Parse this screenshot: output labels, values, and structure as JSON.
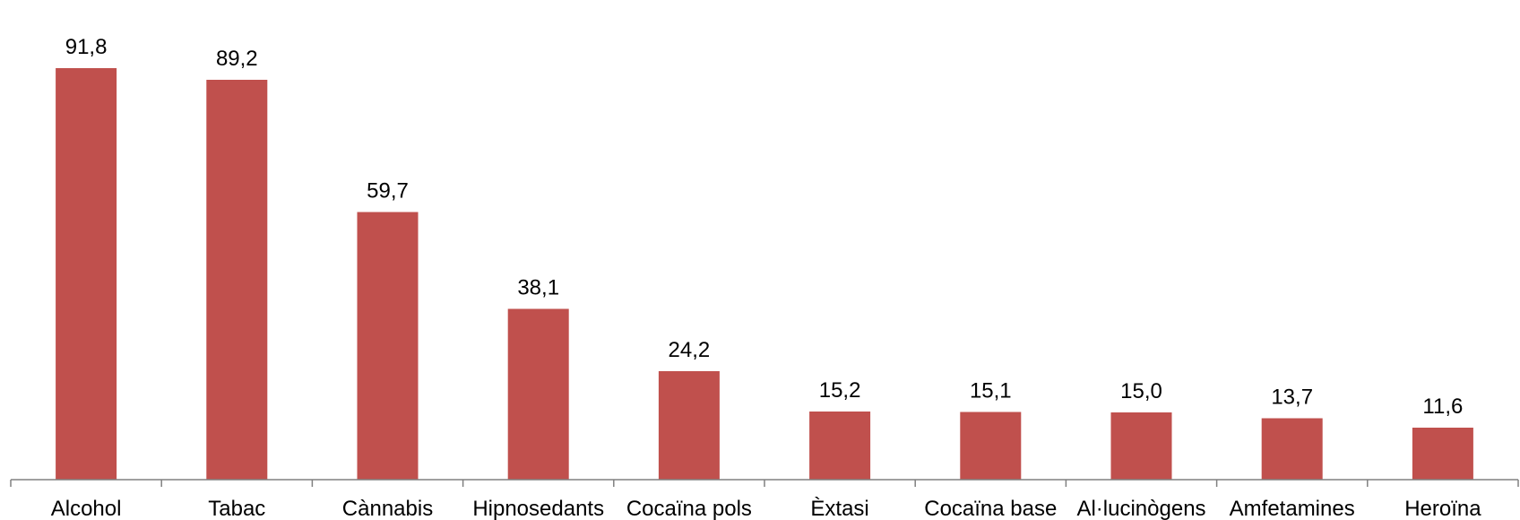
{
  "chart_data": {
    "type": "bar",
    "categories": [
      "Alcohol",
      "Tabac",
      "Cànnabis",
      "Hipnosedants",
      "Cocaïna pols",
      "Èxtasi",
      "Cocaïna base",
      "Al·lucinògens",
      "Amfetamines",
      "Heroïna"
    ],
    "values": [
      91.8,
      89.2,
      59.7,
      38.1,
      24.2,
      15.2,
      15.1,
      15.0,
      13.7,
      11.6
    ],
    "value_labels": [
      "91,8",
      "89,2",
      "59,7",
      "38,1",
      "24,2",
      "15,2",
      "15,1",
      "15,0",
      "13,7",
      "11,6"
    ],
    "title": "",
    "xlabel": "",
    "ylabel": "",
    "ylim": [
      0,
      100
    ],
    "grid": false,
    "legend": "none",
    "bar_color": "#c0504d",
    "axis_color": "#808080"
  }
}
